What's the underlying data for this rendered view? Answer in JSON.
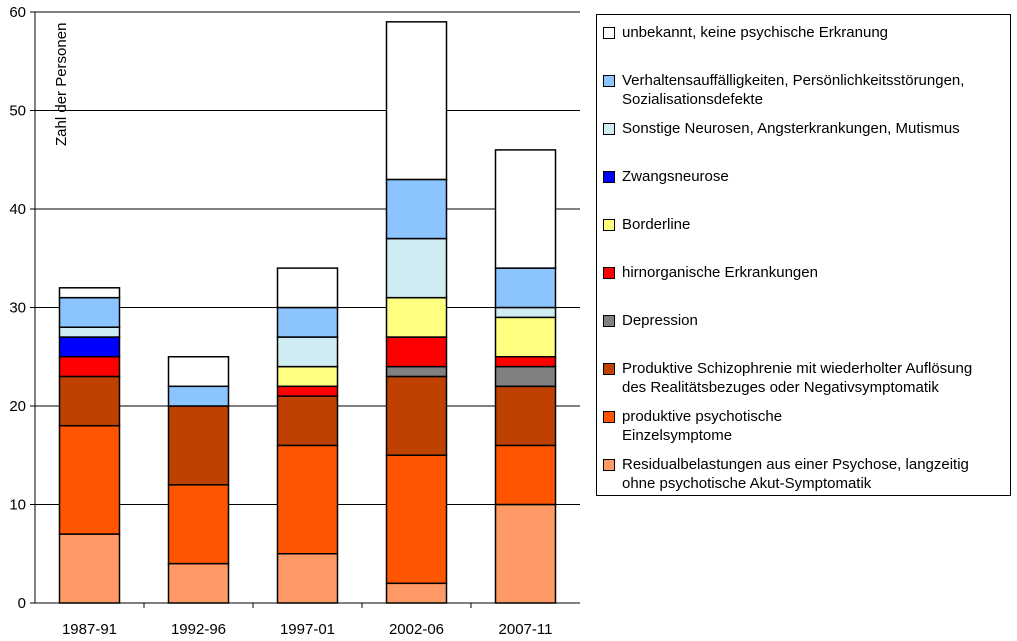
{
  "chart_data": {
    "type": "bar",
    "stacked": true,
    "categories": [
      "1987-91",
      "1992-96",
      "1997-01",
      "2002-06",
      "2007-11"
    ],
    "ylabel": "Zahl der Personen",
    "ylim": [
      0,
      60
    ],
    "yticks": [
      0,
      10,
      20,
      30,
      40,
      50,
      60
    ],
    "grid": true,
    "legend_placement": "right",
    "series": [
      {
        "name": "Residualbelastungen aus einer Psychose, langzeitig ohne psychotische Akut-Symptomatik",
        "color": "#FF9966",
        "values": [
          7,
          4,
          5,
          2,
          10
        ]
      },
      {
        "name": "produktive psychotische Einzelsymptome",
        "color": "#FF5500",
        "values": [
          11,
          8,
          11,
          13,
          6
        ]
      },
      {
        "name": "Produktive Schizophrenie mit wiederholter Auflösung des Realitätsbezuges oder Negativsymptomatik",
        "color": "#BE4100",
        "values": [
          5,
          8,
          5,
          8,
          6
        ]
      },
      {
        "name": "Depression",
        "color": "#808080",
        "values": [
          0,
          0,
          0,
          1,
          2
        ]
      },
      {
        "name": "hirnorganische Erkrankungen",
        "color": "#FF0000",
        "values": [
          2,
          0,
          1,
          3,
          1
        ]
      },
      {
        "name": "Borderline",
        "color": "#FFFF80",
        "values": [
          0,
          0,
          2,
          4,
          4
        ]
      },
      {
        "name": "Zwangsneurose",
        "color": "#0000FF",
        "values": [
          2,
          0,
          0,
          0,
          0
        ]
      },
      {
        "name": "Sonstige Neurosen, Angsterkrankungen, Mutismus",
        "color": "#CFECF3",
        "values": [
          1,
          0,
          3,
          6,
          1
        ]
      },
      {
        "name": "Verhaltensauffälligkeiten, Persönlichkeitsstörungen, Sozialisationsdefekte",
        "color": "#8BC4FF",
        "values": [
          3,
          2,
          3,
          6,
          4
        ]
      },
      {
        "name": "unbekannt, keine psychische Erkranung",
        "color": "#FFFFFF",
        "values": [
          1,
          3,
          4,
          16,
          12
        ]
      }
    ]
  },
  "legend": [
    {
      "label": "unbekannt, keine psychische Erkranung",
      "color": "#FFFFFF"
    },
    {
      "label": "Verhaltensauffälligkeiten, Persönlichkeitsstörungen,\nSozialisationsdefekte",
      "color": "#8BC4FF"
    },
    {
      "label": "Sonstige Neurosen, Angsterkrankungen, Mutismus",
      "color": "#CFECF3"
    },
    {
      "label": "Zwangsneurose",
      "color": "#0000FF"
    },
    {
      "label": "Borderline",
      "color": "#FFFF80"
    },
    {
      "label": "hirnorganische Erkrankungen",
      "color": "#FF0000"
    },
    {
      "label": "Depression",
      "color": "#808080"
    },
    {
      "label": "Produktive Schizophrenie mit wiederholter Auflösung\ndes Realitätsbezuges oder Negativsymptomatik",
      "color": "#BE4100"
    },
    {
      "label": "produktive psychotische\nEinzelsymptome",
      "color": "#FF5500"
    },
    {
      "label": "Residualbelastungen aus einer Psychose, langzeitig\nohne psychotische Akut-Symptomatik",
      "color": "#FF9966"
    }
  ]
}
